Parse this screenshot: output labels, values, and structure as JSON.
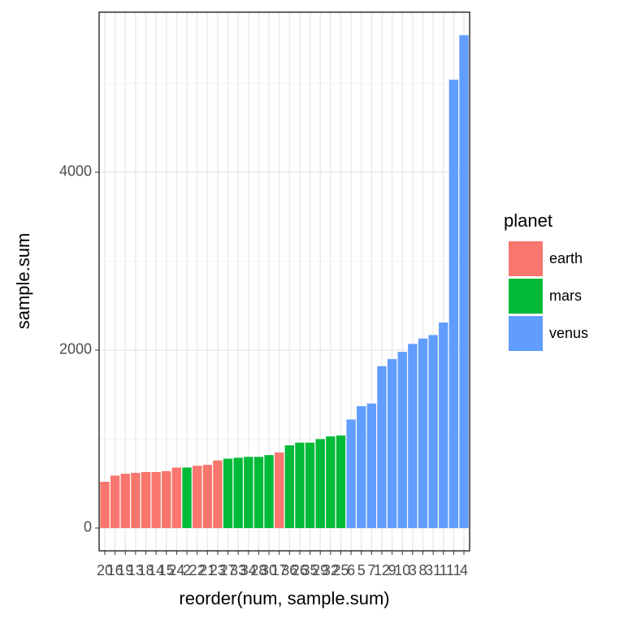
{
  "chart_data": {
    "type": "bar",
    "x_label": "reorder(num, sample.sum)",
    "y_label": "sample.sum",
    "legend_title": "planet",
    "categories": [
      "20",
      "16",
      "19",
      "13",
      "18",
      "14",
      "15",
      "24",
      "2",
      "22",
      "21",
      "23",
      "27",
      "33",
      "34",
      "28",
      "30",
      "17",
      "36",
      "26",
      "35",
      "29",
      "32",
      "25",
      "6",
      "5",
      "7",
      "12",
      "9",
      "10",
      "3",
      "8",
      "31",
      "1",
      "11",
      "4"
    ],
    "series": [
      {
        "name": "earth",
        "color": "#F8766D",
        "values": [
          520,
          590,
          610,
          620,
          630,
          630,
          640,
          680,
          null,
          700,
          710,
          760,
          null,
          null,
          null,
          null,
          null,
          850,
          null,
          null,
          null,
          null,
          null,
          null,
          null,
          null,
          null,
          null,
          null,
          null,
          null,
          null,
          null,
          null,
          null,
          null
        ]
      },
      {
        "name": "mars",
        "color": "#00BA38",
        "values": [
          null,
          null,
          null,
          null,
          null,
          null,
          null,
          null,
          680,
          null,
          null,
          null,
          780,
          790,
          800,
          800,
          820,
          null,
          930,
          960,
          960,
          1000,
          1030,
          1040,
          null,
          null,
          null,
          null,
          null,
          null,
          null,
          null,
          null,
          null,
          null,
          null
        ]
      },
      {
        "name": "venus",
        "color": "#619CFF",
        "values": [
          null,
          null,
          null,
          null,
          null,
          null,
          null,
          null,
          null,
          null,
          null,
          null,
          null,
          null,
          null,
          null,
          null,
          null,
          null,
          null,
          null,
          null,
          null,
          null,
          1220,
          1370,
          1400,
          1820,
          1900,
          1980,
          2070,
          2130,
          2170,
          2310,
          5040,
          5540
        ]
      }
    ],
    "ylim": [
      -256,
      5799
    ],
    "yticks": [
      0,
      2000,
      4000
    ],
    "minor_yticks": [
      1000,
      3000,
      5000
    ],
    "grid": true,
    "legend": "right"
  }
}
